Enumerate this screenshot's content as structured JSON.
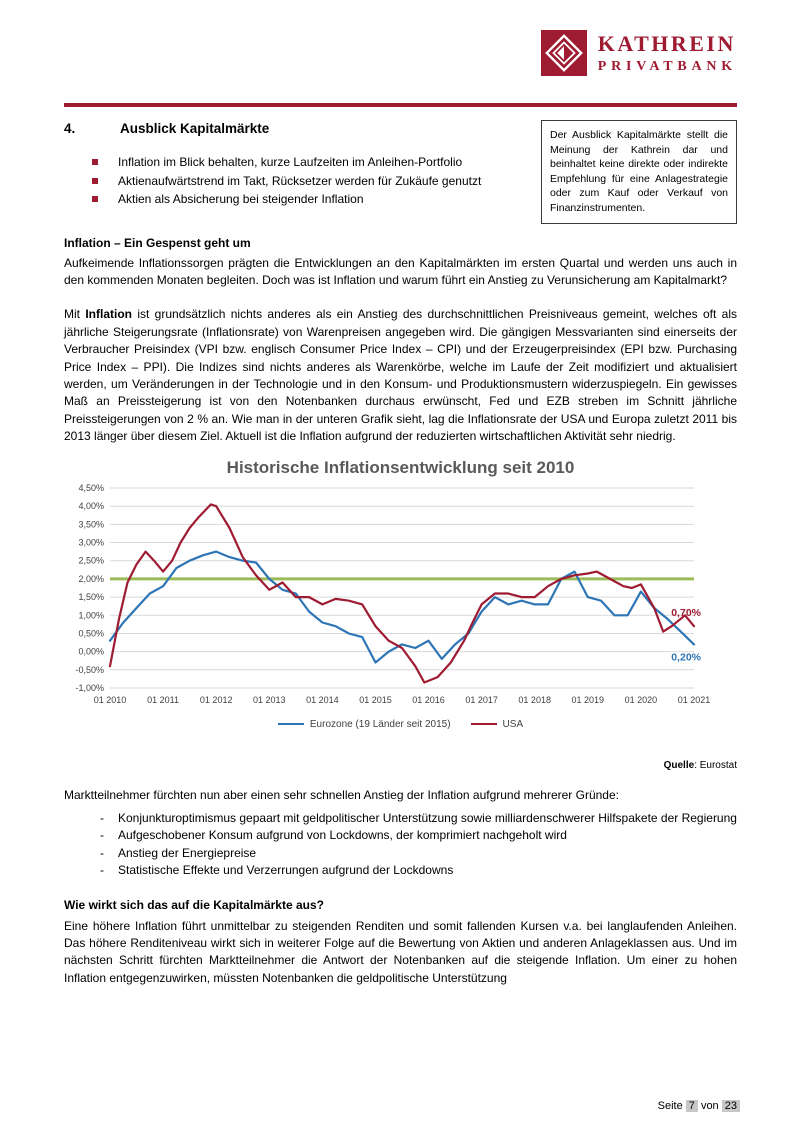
{
  "header": {
    "logo": {
      "line1": "KATHREIN",
      "line2": "PRIVATBANK"
    }
  },
  "section": {
    "number": "4.",
    "title": "Ausblick Kapitalmärkte",
    "bullets": [
      "Inflation im Blick behalten, kurze Laufzeiten im Anleihen-Portfolio",
      "Aktienaufwärtstrend im Takt, Rücksetzer werden für Zukäufe genutzt",
      "Aktien als Absicherung bei steigender Inflation"
    ],
    "disclaimer": "Der Ausblick Kapitalmärkte stellt die Meinung der Kathrein dar und beinhaltet keine direkte oder indirekte Empfehlung für eine Anlagestrategie oder zum Kauf oder Verkauf von Finanzinstrumenten."
  },
  "inflation": {
    "heading": "Inflation – Ein Gespenst geht um",
    "para1": "Aufkeimende Inflationssorgen prägten die Entwicklungen an den Kapitalmärkten im ersten Quartal und werden uns auch in den kommenden Monaten begleiten. Doch was ist Inflation und warum führt ein Anstieg zu Verunsicherung am Kapitalmarkt?",
    "para2_prefix": "Mit ",
    "para2_bold": "Inflation",
    "para2_rest": " ist grundsätzlich nichts anderes als ein Anstieg des durchschnittlichen Preisniveaus gemeint, welches oft als jährliche Steigerungsrate (Inflationsrate) von Warenpreisen angegeben wird. Die gängigen Messvarianten sind einerseits der Verbraucher Preisindex (VPI bzw. englisch Consumer Price Index – CPI) und der Erzeugerpreisindex (EPI bzw. Purchasing Price Index – PPI). Die Indizes sind nichts anderes als Warenkörbe, welche im Laufe der Zeit modifiziert und aktualisiert werden, um Veränderungen in der Technologie und in den Konsum- und Produktionsmustern widerzuspiegeln. Ein gewisses Maß an Preissteigerung ist von den Notenbanken durchaus erwünscht, Fed und EZB streben im Schnitt jährliche Preissteigerungen von 2 % an. Wie man in der unteren Grafik sieht, lag die Inflationsrate der USA und Europa zuletzt 2011 bis 2013 länger über diesem Ziel. Aktuell ist die Inflation aufgrund der reduzierten wirtschaftlichen Aktivität sehr niedrig."
  },
  "reasons": {
    "intro": "Marktteilnehmer fürchten nun aber einen sehr schnellen Anstieg der Inflation aufgrund mehrerer Gründe:",
    "items": [
      "Konjunkturoptimismus gepaart mit geldpolitischer Unterstützung sowie milliardenschwerer Hilfspakete der Regierung",
      "Aufgeschobener Konsum aufgrund von Lockdowns, der komprimiert nachgeholt wird",
      "Anstieg der Energiepreise",
      "Statistische Effekte und Verzerrungen aufgrund der Lockdowns"
    ]
  },
  "impact": {
    "heading": "Wie wirkt sich das auf die Kapitalmärkte aus?",
    "para": "Eine höhere Inflation führt unmittelbar zu steigenden Renditen und somit fallenden Kursen v.a. bei langlaufenden Anleihen. Das höhere Renditeniveau wirkt sich in weiterer Folge auf die Bewertung von Aktien und anderen Anlageklassen aus. Und im nächsten Schritt fürchten Marktteilnehmer die Antwort der Notenbanken auf die steigende Inflation. Um einer zu hohen Inflation entgegenzuwirken, müssten Notenbanken die geldpolitische Unterstützung"
  },
  "footer": {
    "seite_label": "Seite",
    "page_number": "7",
    "von_label": "von",
    "total_pages": "23"
  },
  "chart_data": {
    "type": "line",
    "title": "Historische Inflationsentwicklung seit 2010",
    "source_bold": "Quelle",
    "source_rest": ": Eurostat",
    "xlim": [
      2010,
      2021
    ],
    "ylim": [
      -1.0,
      4.5
    ],
    "grid": true,
    "legend_position": "bottom",
    "reference_line": {
      "value": 2.0,
      "color": "#9bbb59"
    },
    "y_ticks": [
      {
        "v": 4.5,
        "label": "4,50%"
      },
      {
        "v": 4.0,
        "label": "4,00%"
      },
      {
        "v": 3.5,
        "label": "3,50%"
      },
      {
        "v": 3.0,
        "label": "3,00%"
      },
      {
        "v": 2.5,
        "label": "2,50%"
      },
      {
        "v": 2.0,
        "label": "2,00%"
      },
      {
        "v": 1.5,
        "label": "1,50%"
      },
      {
        "v": 1.0,
        "label": "1,00%"
      },
      {
        "v": 0.5,
        "label": "0,50%"
      },
      {
        "v": 0.0,
        "label": "0,00%"
      },
      {
        "v": -0.5,
        "label": "-0,50%"
      },
      {
        "v": -1.0,
        "label": "-1,00%"
      }
    ],
    "x_ticks": [
      {
        "v": 2010,
        "label": "01 2010"
      },
      {
        "v": 2011,
        "label": "01 2011"
      },
      {
        "v": 2012,
        "label": "01 2012"
      },
      {
        "v": 2013,
        "label": "01 2013"
      },
      {
        "v": 2014,
        "label": "01 2014"
      },
      {
        "v": 2015,
        "label": "01 2015"
      },
      {
        "v": 2016,
        "label": "01 2016"
      },
      {
        "v": 2017,
        "label": "01 2017"
      },
      {
        "v": 2018,
        "label": "01 2018"
      },
      {
        "v": 2019,
        "label": "01 2019"
      },
      {
        "v": 2020,
        "label": "01 2020"
      },
      {
        "v": 2021,
        "label": "01 2021"
      }
    ],
    "series": [
      {
        "id": "eurozone",
        "name": "Eurozone (19 Länder seit 2015)",
        "color": "#2e75b6",
        "end_label": "0,20%",
        "x": [
          2010.0,
          2010.25,
          2010.5,
          2010.75,
          2011.0,
          2011.25,
          2011.5,
          2011.75,
          2012.0,
          2012.25,
          2012.5,
          2012.75,
          2013.0,
          2013.25,
          2013.5,
          2013.75,
          2014.0,
          2014.25,
          2014.5,
          2014.75,
          2015.0,
          2015.25,
          2015.5,
          2015.75,
          2016.0,
          2016.25,
          2016.5,
          2016.75,
          2017.0,
          2017.25,
          2017.5,
          2017.75,
          2018.0,
          2018.25,
          2018.5,
          2018.75,
          2019.0,
          2019.25,
          2019.5,
          2019.75,
          2020.0,
          2020.25,
          2020.5,
          2020.75,
          2021.0
        ],
        "values": [
          0.3,
          0.8,
          1.2,
          1.6,
          1.8,
          2.3,
          2.5,
          2.65,
          2.75,
          2.6,
          2.5,
          2.45,
          2.0,
          1.7,
          1.6,
          1.1,
          0.8,
          0.7,
          0.5,
          0.4,
          -0.3,
          0.0,
          0.2,
          0.1,
          0.3,
          -0.2,
          0.2,
          0.5,
          1.1,
          1.5,
          1.3,
          1.4,
          1.3,
          1.3,
          2.0,
          2.2,
          1.5,
          1.4,
          1.0,
          1.0,
          1.65,
          1.2,
          0.9,
          0.55,
          0.2
        ]
      },
      {
        "id": "usa",
        "name": "USA",
        "color": "#9e1b32",
        "end_label": "0,70%",
        "x": [
          2010.0,
          2010.17,
          2010.33,
          2010.5,
          2010.67,
          2010.83,
          2011.0,
          2011.17,
          2011.33,
          2011.5,
          2011.67,
          2011.9,
          2012.0,
          2012.25,
          2012.5,
          2012.75,
          2013.0,
          2013.25,
          2013.5,
          2013.75,
          2014.0,
          2014.25,
          2014.5,
          2014.75,
          2015.0,
          2015.25,
          2015.5,
          2015.75,
          2015.92,
          2016.17,
          2016.42,
          2016.67,
          2016.83,
          2017.0,
          2017.25,
          2017.5,
          2017.75,
          2018.0,
          2018.25,
          2018.5,
          2018.75,
          2019.0,
          2019.17,
          2019.42,
          2019.67,
          2019.83,
          2020.0,
          2020.25,
          2020.42,
          2020.58,
          2020.83,
          2021.0
        ],
        "values": [
          -0.4,
          0.9,
          1.9,
          2.4,
          2.75,
          2.5,
          2.2,
          2.5,
          3.0,
          3.4,
          3.7,
          4.05,
          4.0,
          3.4,
          2.6,
          2.1,
          1.7,
          1.9,
          1.5,
          1.5,
          1.3,
          1.45,
          1.4,
          1.3,
          0.7,
          0.3,
          0.1,
          -0.4,
          -0.85,
          -0.7,
          -0.3,
          0.3,
          0.8,
          1.3,
          1.6,
          1.6,
          1.5,
          1.5,
          1.8,
          2.0,
          2.1,
          2.15,
          2.2,
          2.0,
          1.8,
          1.75,
          1.85,
          1.2,
          0.55,
          0.7,
          1.0,
          0.7
        ]
      }
    ]
  }
}
